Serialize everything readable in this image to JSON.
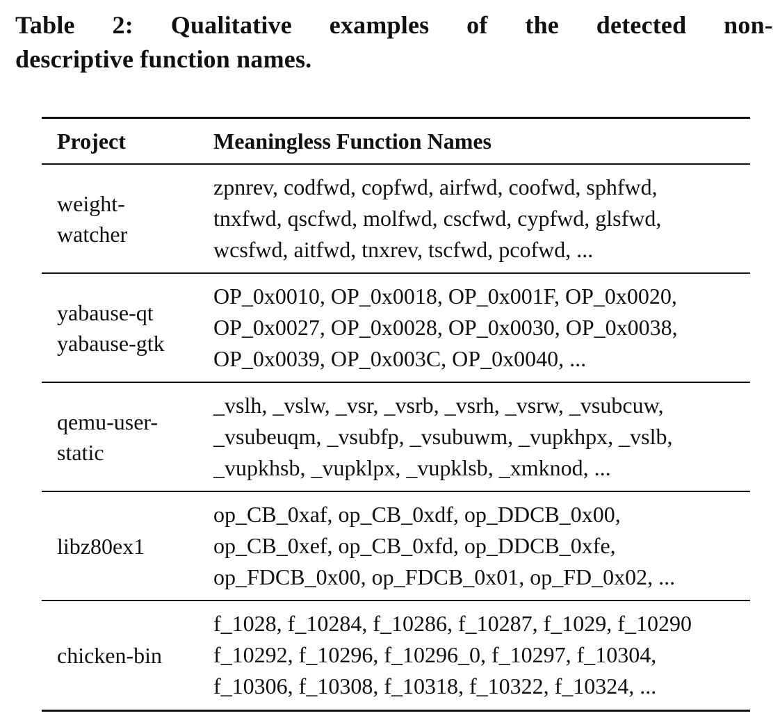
{
  "caption": {
    "line1": "Table 2: Qualitative examples of the detected non-",
    "line2": "descriptive function names."
  },
  "table": {
    "headers": {
      "project": "Project",
      "names": "Meaningless Function Names"
    },
    "rows": [
      {
        "project_lines": [
          "weight-",
          "watcher"
        ],
        "name_lines": [
          "zpnrev, codfwd, copfwd, airfwd, coofwd, sphfwd,",
          "tnxfwd, qscfwd, molfwd, cscfwd, cypfwd, glsfwd,",
          "wcsfwd, aitfwd, tnxrev, tscfwd, pcofwd, ..."
        ]
      },
      {
        "project_lines": [
          "yabause-qt",
          "yabause-gtk"
        ],
        "name_lines": [
          "OP_0x0010, OP_0x0018, OP_0x001F, OP_0x0020,",
          "OP_0x0027, OP_0x0028, OP_0x0030, OP_0x0038,",
          "OP_0x0039, OP_0x003C, OP_0x0040, ..."
        ]
      },
      {
        "project_lines": [
          "qemu-user-",
          "static"
        ],
        "name_lines": [
          "_vslh, _vslw, _vsr, _vsrb, _vsrh, _vsrw, _vsubcuw,",
          "_vsubeuqm, _vsubfp, _vsubuwm, _vupkhpx, _vslb,",
          "_vupkhsb, _vupklpx, _vupklsb, _xmknod, ..."
        ]
      },
      {
        "project_lines": [
          "libz80ex1"
        ],
        "name_lines": [
          "op_CB_0xaf, op_CB_0xdf, op_DDCB_0x00,",
          "op_CB_0xef, op_CB_0xfd, op_DDCB_0xfe,",
          "op_FDCB_0x00, op_FDCB_0x01, op_FD_0x02, ..."
        ]
      },
      {
        "project_lines": [
          "chicken-bin"
        ],
        "name_lines": [
          "f_1028, f_10284, f_10286, f_10287, f_1029, f_10290",
          "f_10292, f_10296, f_10296_0, f_10297, f_10304,",
          "f_10306, f_10308, f_10318, f_10322, f_10324, ..."
        ]
      }
    ]
  }
}
